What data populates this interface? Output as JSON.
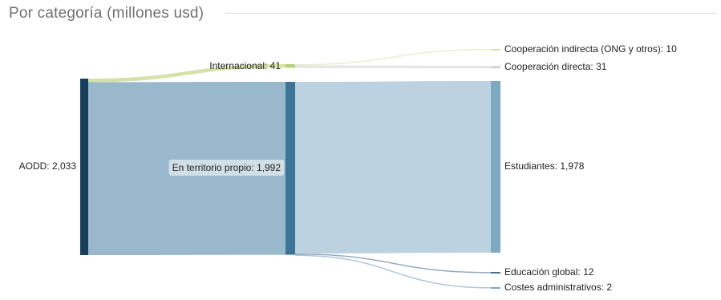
{
  "title": "Por categoría (millones usd)",
  "chart_data": {
    "type": "sankey",
    "title": "Por categoría (millones usd)",
    "nodes": [
      {
        "id": "aodd",
        "label": "AODD: 2,033",
        "value": 2033,
        "color": "#173f5b"
      },
      {
        "id": "internacional",
        "label": "Internacional: 41",
        "value": 41,
        "color": "#b9d07a"
      },
      {
        "id": "territorio",
        "label": "En territorio propio: 1,992",
        "value": 1992,
        "color": "#3d7597"
      },
      {
        "id": "coop_indirecta",
        "label": "Cooperación indirecta (ONG y otros): 10",
        "value": 10,
        "color": "#d6e3a6"
      },
      {
        "id": "coop_directa",
        "label": "Cooperación directa: 31",
        "value": 31,
        "color": "#d9d9d9"
      },
      {
        "id": "estudiantes",
        "label": "Estudiantes: 1,978",
        "value": 1978,
        "color": "#7fa9c3"
      },
      {
        "id": "educacion_global",
        "label": "Educación global: 12",
        "value": 12,
        "color": "#4d6f8b"
      },
      {
        "id": "costes_admin",
        "label": "Costes administrativos: 2",
        "value": 2,
        "color": "#7fa9c3"
      }
    ],
    "links": [
      {
        "source": "aodd",
        "target": "internacional",
        "value": 41,
        "color": "#d3e0a2"
      },
      {
        "source": "aodd",
        "target": "territorio",
        "value": 1992,
        "color": "#93b4c8"
      },
      {
        "source": "internacional",
        "target": "coop_indirecta",
        "value": 10,
        "color": "#e7eecb"
      },
      {
        "source": "internacional",
        "target": "coop_directa",
        "value": 31,
        "color": "#e4e4e4"
      },
      {
        "source": "territorio",
        "target": "estudiantes",
        "value": 1978,
        "color": "#b8d0de"
      },
      {
        "source": "territorio",
        "target": "educacion_global",
        "value": 12,
        "color": "#8ea7b9"
      },
      {
        "source": "territorio",
        "target": "costes_admin",
        "value": 2,
        "color": "#a9c3d3"
      }
    ]
  }
}
